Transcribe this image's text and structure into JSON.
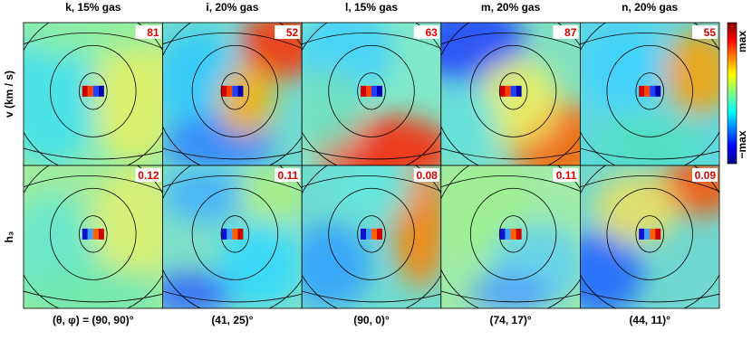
{
  "panels": [
    {
      "title": "k, 15% gas",
      "v_max": 81,
      "h3_max": 0.12,
      "angles": "(θ, φ) = (90, 90)°"
    },
    {
      "title": "i, 20% gas",
      "v_max": 52,
      "h3_max": 0.11,
      "angles": "(41, 25)°"
    },
    {
      "title": "l, 15% gas",
      "v_max": 63,
      "h3_max": 0.08,
      "angles": "(90, 0)°"
    },
    {
      "title": "m, 20% gas",
      "v_max": 87,
      "h3_max": 0.11,
      "angles": "(74, 17)°"
    },
    {
      "title": "n, 20% gas",
      "v_max": 55,
      "h3_max": 0.09,
      "angles": "(44, 11)°"
    }
  ],
  "row_labels": [
    "v (km / s)",
    "h₃"
  ],
  "colorbar": {
    "top": "max",
    "bottom": "−max"
  }
}
